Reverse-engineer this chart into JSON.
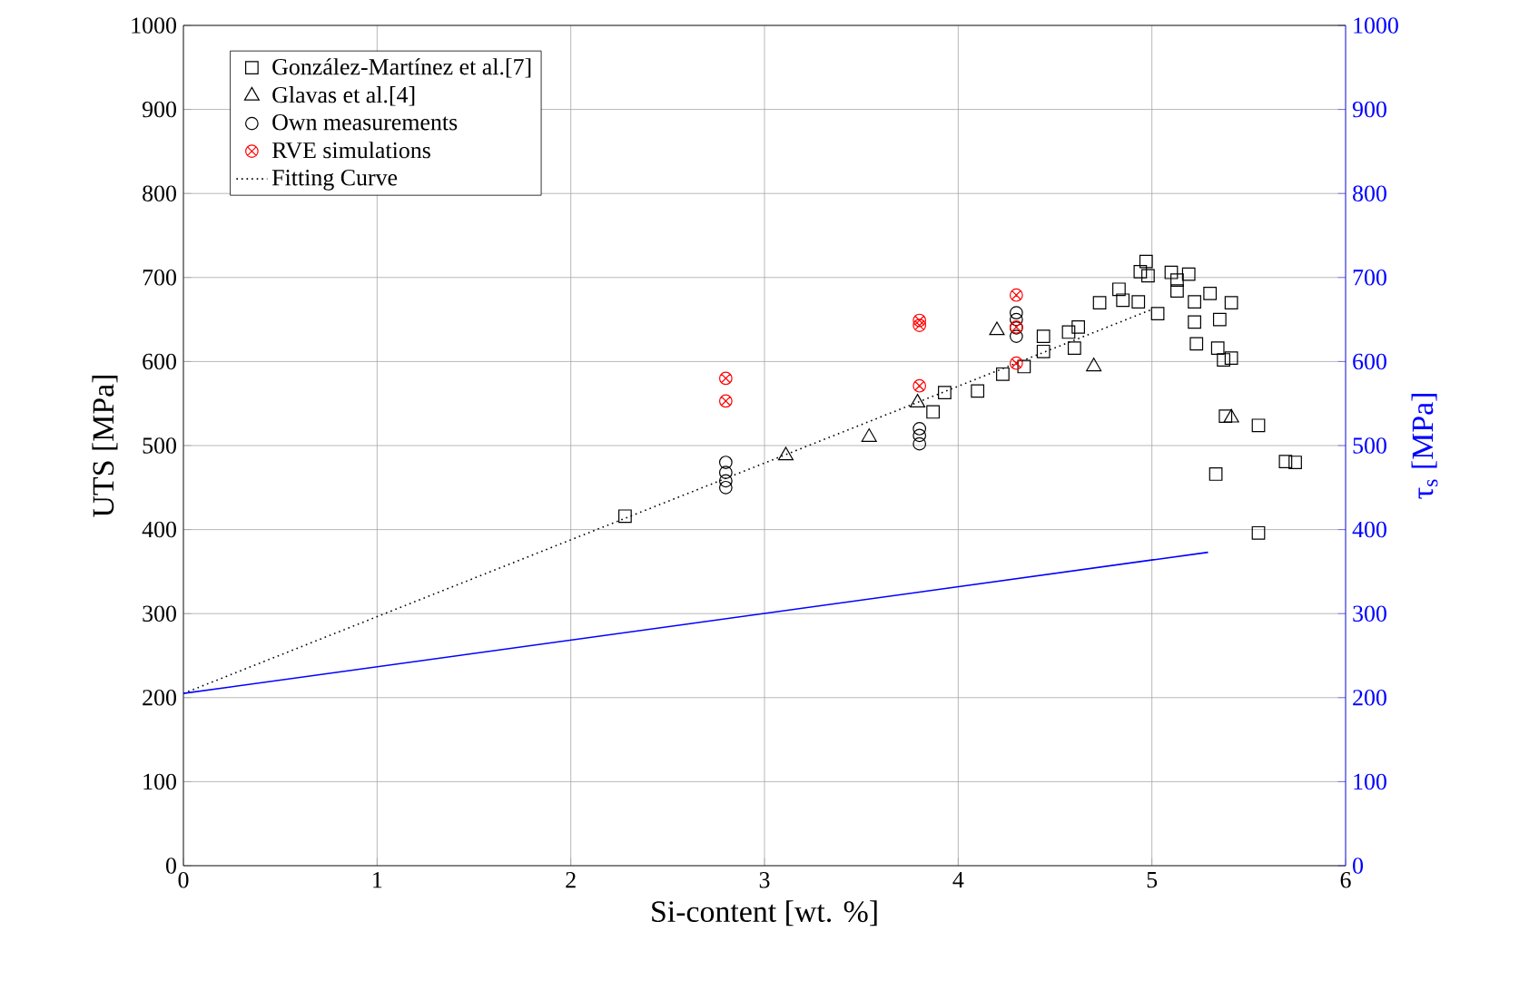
{
  "chart_data": {
    "type": "scatter",
    "xlabel": "Si-content [wt. %]",
    "ylabel": "UTS [MPa]",
    "y2label": "τ$_{s}$ [MPa]",
    "xlim": [
      0,
      6
    ],
    "xticks": [
      0,
      1,
      2,
      3,
      4,
      5,
      6
    ],
    "ylim": [
      0,
      1000
    ],
    "yticks": [
      0,
      100,
      200,
      300,
      400,
      500,
      600,
      700,
      800,
      900,
      1000
    ],
    "y2lim": [
      0,
      1000
    ],
    "y2ticks": [
      0,
      100,
      200,
      300,
      400,
      500,
      600,
      700,
      800,
      900,
      1000
    ],
    "grid": true,
    "legend": "top left",
    "series": [
      {
        "name": "González-Martínez et al.[7]",
        "marker": "square",
        "color": "#000000",
        "x": [
          2.28,
          3.87,
          3.93,
          4.1,
          4.23,
          4.34,
          4.44,
          4.44,
          4.57,
          4.6,
          4.62,
          4.73,
          4.83,
          4.85,
          4.93,
          4.94,
          4.97,
          4.98,
          5.03,
          5.1,
          5.13,
          5.13,
          5.19,
          5.22,
          5.22,
          5.23,
          5.3,
          5.33,
          5.34,
          5.35,
          5.37,
          5.38,
          5.41,
          5.41,
          5.55,
          5.55,
          5.69,
          5.74
        ],
        "values": [
          416,
          540,
          563,
          565,
          585,
          594,
          630,
          612,
          635,
          616,
          641,
          670,
          686,
          673,
          671,
          707,
          719,
          702,
          657,
          706,
          697,
          684,
          704,
          671,
          647,
          621,
          681,
          466,
          616,
          650,
          602,
          535,
          670,
          604,
          524,
          396,
          481,
          480
        ]
      },
      {
        "name": "Glavas et al.[4]",
        "marker": "triangle",
        "color": "#000000",
        "x": [
          3.11,
          3.54,
          3.79,
          4.2,
          4.7,
          5.41
        ],
        "values": [
          488,
          510,
          551,
          637,
          594,
          533
        ]
      },
      {
        "name": "Own measurements",
        "marker": "circle",
        "color": "#000000",
        "x": [
          2.8,
          2.8,
          2.8,
          2.8,
          3.8,
          3.8,
          3.8,
          4.3,
          4.3,
          4.3,
          4.3
        ],
        "values": [
          480,
          468,
          458,
          450,
          520,
          512,
          502,
          658,
          650,
          640,
          630
        ]
      },
      {
        "name": "RVE simulations",
        "marker": "cross",
        "color": "#ff0000",
        "x": [
          2.8,
          2.8,
          3.8,
          3.8,
          3.8,
          4.3,
          4.3,
          4.3
        ],
        "values": [
          580,
          553,
          649,
          643,
          571,
          679,
          641,
          598
        ]
      },
      {
        "name": "Fitting Curve",
        "type": "line",
        "marker": "none",
        "line_style": "dotted",
        "color": "#000000",
        "x": [
          0,
          5.0
        ],
        "values": [
          205,
          662
        ]
      },
      {
        "type": "line",
        "axis": "y2",
        "marker": "none",
        "line_style": "solid",
        "color": "#0000ff",
        "x": [
          0,
          5.29
        ],
        "values": [
          205,
          373
        ]
      }
    ]
  }
}
